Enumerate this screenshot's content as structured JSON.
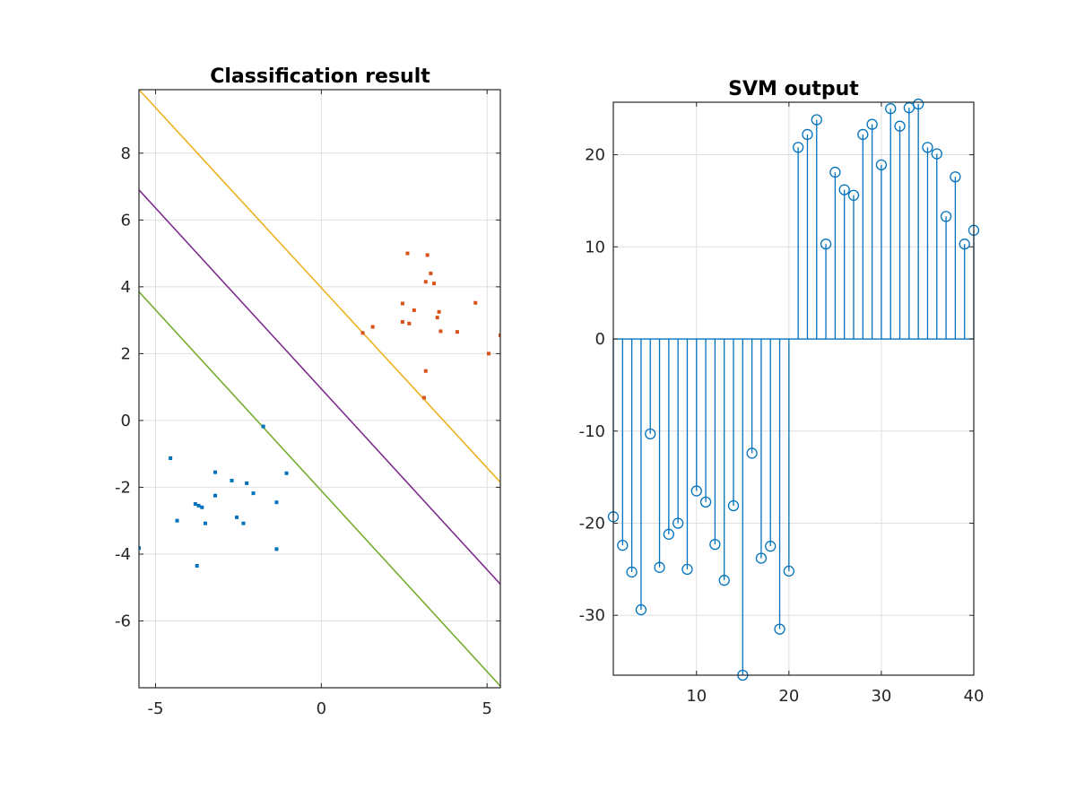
{
  "colors": {
    "class_a": "#0072BD",
    "class_b": "#D95319",
    "margin_upper": "#EDB120",
    "decision": "#7E2F8E",
    "margin_lower": "#77AC30",
    "stem": "#0072BD"
  },
  "chart_data": [
    {
      "type": "scatter",
      "title": "Classification result",
      "xlabel": "",
      "ylabel": "",
      "xlim": [
        -5.5,
        5.4
      ],
      "ylim": [
        -8,
        9.9
      ],
      "xticks": [
        -5,
        0,
        5
      ],
      "yticks": [
        -6,
        -4,
        -2,
        0,
        2,
        4,
        6,
        8
      ],
      "grid": true,
      "series": [
        {
          "points": [
            [
              -4.55,
              -1.13
            ],
            [
              -4.35,
              -3.0
            ],
            [
              -3.75,
              -4.35
            ],
            [
              -3.8,
              -2.5
            ],
            [
              -3.7,
              -2.55
            ],
            [
              -3.6,
              -2.6
            ],
            [
              -3.5,
              -3.08
            ],
            [
              -3.2,
              -1.55
            ],
            [
              -3.2,
              -2.25
            ],
            [
              -2.7,
              -1.8
            ],
            [
              -2.55,
              -2.9
            ],
            [
              -2.35,
              -3.08
            ],
            [
              -2.25,
              -1.88
            ],
            [
              -2.05,
              -2.18
            ],
            [
              -1.75,
              -0.18
            ],
            [
              -1.35,
              -2.45
            ],
            [
              -1.35,
              -3.85
            ],
            [
              -1.05,
              -1.58
            ],
            [
              -5.5,
              -3.82
            ]
          ]
        },
        {
          "points": [
            [
              1.25,
              2.62
            ],
            [
              1.55,
              2.8
            ],
            [
              2.45,
              3.5
            ],
            [
              2.45,
              2.95
            ],
            [
              2.6,
              5.0
            ],
            [
              2.65,
              2.9
            ],
            [
              2.8,
              3.3
            ],
            [
              3.1,
              0.68
            ],
            [
              3.15,
              1.48
            ],
            [
              3.15,
              4.15
            ],
            [
              3.2,
              4.95
            ],
            [
              3.3,
              4.4
            ],
            [
              3.4,
              4.1
            ],
            [
              3.5,
              3.08
            ],
            [
              3.55,
              3.25
            ],
            [
              3.6,
              2.67
            ],
            [
              4.1,
              2.65
            ],
            [
              4.65,
              3.52
            ],
            [
              5.05,
              2.0
            ],
            [
              5.4,
              2.55
            ]
          ]
        }
      ],
      "lines": [
        {
          "role": "margin_upper",
          "from": [
            -5.5,
            9.9
          ],
          "to": [
            5.4,
            -1.85
          ]
        },
        {
          "role": "decision",
          "from": [
            -5.5,
            6.9
          ],
          "to": [
            5.4,
            -4.9
          ]
        },
        {
          "role": "margin_lower",
          "from": [
            -5.5,
            3.85
          ],
          "to": [
            5.4,
            -7.95
          ]
        }
      ]
    },
    {
      "type": "stem",
      "title": "SVM output",
      "xlabel": "",
      "ylabel": "",
      "xlim": [
        1,
        40
      ],
      "ylim": [
        -36.5,
        25.7
      ],
      "xticks": [
        10,
        20,
        30,
        40
      ],
      "yticks": [
        -30,
        -20,
        -10,
        0,
        10,
        20
      ],
      "grid": true,
      "x": [
        1,
        2,
        3,
        4,
        5,
        6,
        7,
        8,
        9,
        10,
        11,
        12,
        13,
        14,
        15,
        16,
        17,
        18,
        19,
        20,
        21,
        22,
        23,
        24,
        25,
        26,
        27,
        28,
        29,
        30,
        31,
        32,
        33,
        34,
        35,
        36,
        37,
        38,
        39,
        40
      ],
      "values": [
        -19.3,
        -22.4,
        -25.3,
        -29.4,
        -10.3,
        -24.8,
        -21.2,
        -20.0,
        -25.0,
        -16.5,
        -17.7,
        -22.3,
        -26.2,
        -18.1,
        -36.5,
        -12.4,
        -23.8,
        -22.5,
        -31.5,
        -25.2,
        20.8,
        22.2,
        23.8,
        10.3,
        18.1,
        16.2,
        15.6,
        22.2,
        23.3,
        18.9,
        25.0,
        23.1,
        25.1,
        25.5,
        20.8,
        20.1,
        13.3,
        17.6,
        10.3,
        11.8
      ]
    }
  ]
}
